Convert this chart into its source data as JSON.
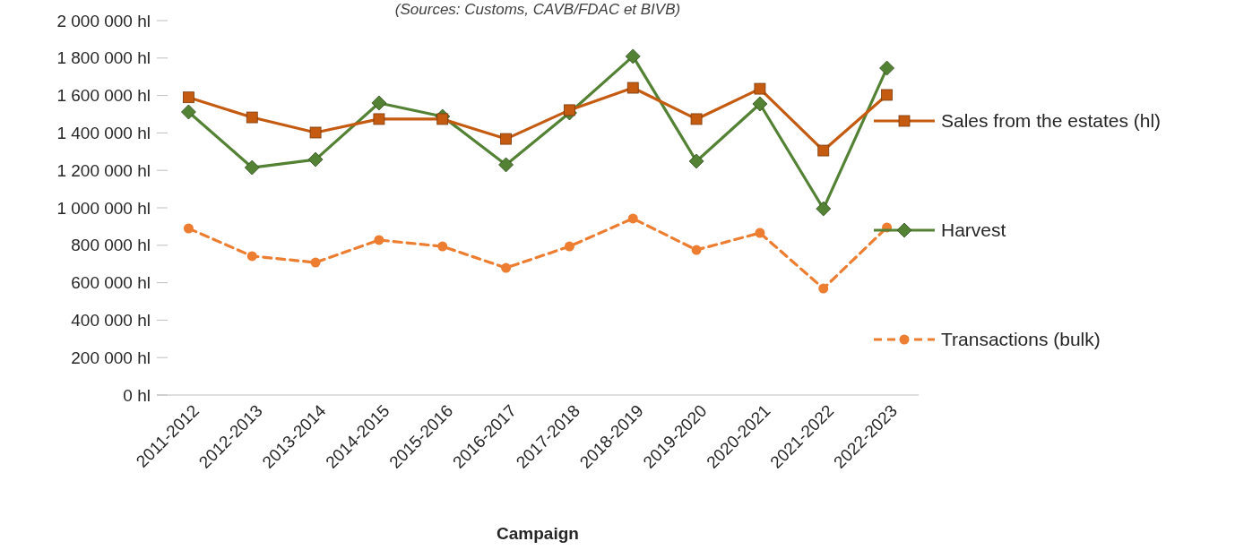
{
  "chart_data": {
    "type": "line",
    "subtitle": "(Sources: Customs, CAVB/FDAC et BIVB)",
    "xlabel": "Campaign",
    "categories": [
      "2011-2012",
      "2012-2013",
      "2013-2014",
      "2014-2015",
      "2015-2016",
      "2016-2017",
      "2017-2018",
      "2018-2019",
      "2019-2020",
      "2020-2021",
      "2021-2022",
      "2022-2023"
    ],
    "series": [
      {
        "name": "Sales from the estates (hl)",
        "color": "#c55a11",
        "marker": "square",
        "line_style": "solid",
        "values": [
          1590000,
          1483000,
          1402000,
          1474000,
          1474000,
          1368000,
          1522000,
          1641000,
          1474000,
          1636000,
          1306000,
          1603000
        ]
      },
      {
        "name": "Harvest",
        "color": "#548235",
        "marker": "diamond",
        "line_style": "solid",
        "values": [
          1512000,
          1215000,
          1258000,
          1560000,
          1488000,
          1230000,
          1507000,
          1809000,
          1249000,
          1555000,
          995000,
          1746000
        ]
      },
      {
        "name": "Transactions (bulk)",
        "color": "#ed7d31",
        "marker": "circle",
        "line_style": "dashed",
        "values": [
          890000,
          742000,
          708000,
          828000,
          794000,
          679000,
          794000,
          943000,
          775000,
          866000,
          569000,
          895000
        ]
      }
    ],
    "ylim": [
      0,
      2000000
    ],
    "yticks": [
      {
        "value": 0,
        "label": "0 hl"
      },
      {
        "value": 200000,
        "label": "200 000 hl"
      },
      {
        "value": 400000,
        "label": "400 000 hl"
      },
      {
        "value": 600000,
        "label": "600 000 hl"
      },
      {
        "value": 800000,
        "label": "800 000 hl"
      },
      {
        "value": 1000000,
        "label": "1 000 000 hl"
      },
      {
        "value": 1200000,
        "label": "1 200 000 hl"
      },
      {
        "value": 1400000,
        "label": "1 400 000 hl"
      },
      {
        "value": 1600000,
        "label": "1 600 000 hl"
      },
      {
        "value": 1800000,
        "label": "1 800 000 hl"
      },
      {
        "value": 2000000,
        "label": "2 000 000 hl"
      }
    ],
    "grid": false,
    "legend": "right"
  }
}
